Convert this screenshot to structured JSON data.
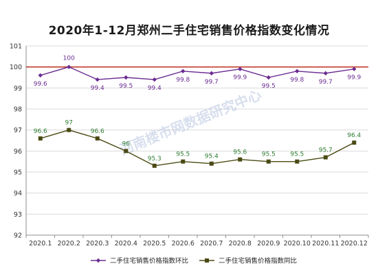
{
  "chart_data": {
    "type": "line",
    "title": "2020年1-12月郑州二手住宅销售价格指数变化情况",
    "watermark": "河南楼市网数据研究中心",
    "categories": [
      "2020.1",
      "2020.2",
      "2020.3",
      "2020.4",
      "2020.5",
      "2020.6",
      "2020.7",
      "2020.8",
      "2020.9",
      "2020.10",
      "2020.11",
      "2020.12"
    ],
    "ylim": [
      92,
      101
    ],
    "yticks": [
      92,
      93,
      94,
      95,
      96,
      97,
      98,
      99,
      100,
      101
    ],
    "grid": true,
    "reference_line": {
      "value": 100,
      "color": "#c0392b"
    },
    "legend_position": "bottom",
    "series": [
      {
        "name": "二手住宅销售价格指数环比",
        "color": "#6a2c91",
        "marker": "diamond",
        "values": [
          99.6,
          100,
          99.4,
          99.5,
          99.4,
          99.8,
          99.7,
          99.9,
          99.5,
          99.8,
          99.7,
          99.9
        ],
        "labels": [
          "99.6",
          "100",
          "99.4",
          "99.5",
          "99.4",
          "99.8",
          "99.7",
          "99.9",
          "99.5",
          "99.8",
          "99.7",
          "99.9"
        ]
      },
      {
        "name": "二手住宅销售价格指数同比",
        "color": "#4a4a14",
        "label_color": "#2e7d32",
        "marker": "square",
        "values": [
          96.6,
          97,
          96.6,
          96,
          95.3,
          95.5,
          95.4,
          95.6,
          95.5,
          95.5,
          95.7,
          96.4
        ],
        "labels": [
          "96.6",
          "97",
          "96.6",
          "96",
          "95.3",
          "95.5",
          "95.4",
          "95.6",
          "95.5",
          "95.5",
          "95.7",
          "96.4"
        ]
      }
    ]
  }
}
